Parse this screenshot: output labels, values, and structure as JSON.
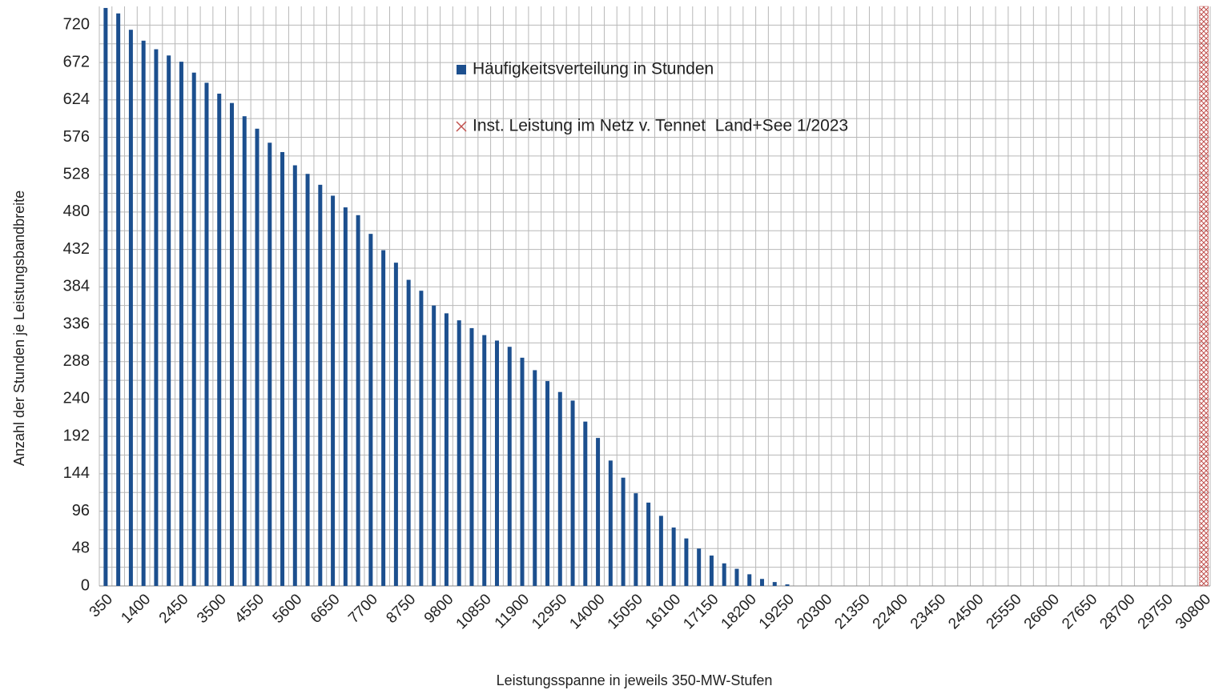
{
  "chart_data": {
    "type": "bar",
    "x_label": "Leistungsspanne in jeweils 350-MW-Stufen",
    "y_label": "Anzahl der Stunden je Leistungsbandbreite",
    "categories": [
      350,
      null,
      null,
      1400,
      null,
      null,
      2450,
      null,
      null,
      3500,
      null,
      null,
      4550,
      null,
      null,
      5600,
      null,
      null,
      6650,
      null,
      null,
      7700,
      null,
      null,
      8750,
      null,
      null,
      9800,
      null,
      null,
      10850,
      null,
      null,
      11900,
      null,
      null,
      12950,
      null,
      null,
      14000,
      null,
      null,
      15050,
      null,
      null,
      16100,
      null,
      null,
      17150,
      null,
      null,
      18200,
      null,
      null,
      19250,
      null,
      null,
      20300,
      null,
      null,
      21350,
      null,
      null,
      22400,
      null,
      null,
      23450,
      null,
      null,
      24500,
      null,
      null,
      25550,
      null,
      null,
      26600,
      null,
      null,
      27650,
      null,
      null,
      28700,
      null,
      null,
      29750,
      null,
      null,
      30800
    ],
    "series": [
      {
        "name": "Häufigkeitsverteilung in Stunden",
        "color": "#1c4f8e",
        "values": [
          742,
          735,
          714,
          700,
          689,
          681,
          673,
          659,
          646,
          632,
          620,
          603,
          587,
          569,
          557,
          540,
          529,
          515,
          501,
          486,
          476,
          452,
          431,
          415,
          393,
          379,
          360,
          350,
          341,
          331,
          322,
          315,
          307,
          293,
          277,
          263,
          249,
          238,
          211,
          190,
          161,
          139,
          119,
          107,
          90,
          75,
          61,
          48,
          39,
          29,
          22,
          15,
          9,
          5,
          2,
          0,
          0,
          0,
          0,
          0,
          0,
          0,
          0,
          0,
          0,
          0,
          0,
          0,
          0,
          0,
          0,
          0,
          0,
          0,
          0,
          0,
          0,
          0,
          0,
          0,
          0,
          0,
          0,
          0,
          0,
          0,
          0,
          0
        ]
      },
      {
        "name": "Inst. Leistung im Netz v. Tennet  Land+See 1/2023",
        "color": "#c0504d",
        "values": [
          null,
          null,
          null,
          null,
          null,
          null,
          null,
          null,
          null,
          null,
          null,
          null,
          null,
          null,
          null,
          null,
          null,
          null,
          null,
          null,
          null,
          null,
          null,
          null,
          null,
          null,
          null,
          null,
          null,
          null,
          null,
          null,
          null,
          null,
          null,
          null,
          null,
          null,
          null,
          null,
          null,
          null,
          null,
          null,
          null,
          null,
          null,
          null,
          null,
          null,
          null,
          null,
          null,
          null,
          null,
          null,
          null,
          null,
          null,
          null,
          null,
          null,
          null,
          null,
          null,
          null,
          null,
          null,
          null,
          null,
          null,
          null,
          null,
          null,
          null,
          null,
          null,
          null,
          null,
          null,
          null,
          null,
          null,
          null,
          null,
          null,
          null,
          744
        ]
      }
    ],
    "ylim": [
      0,
      744
    ],
    "yticks": [
      0,
      48,
      96,
      144,
      192,
      240,
      288,
      336,
      384,
      432,
      480,
      528,
      576,
      624,
      672,
      720
    ],
    "grid": true
  }
}
